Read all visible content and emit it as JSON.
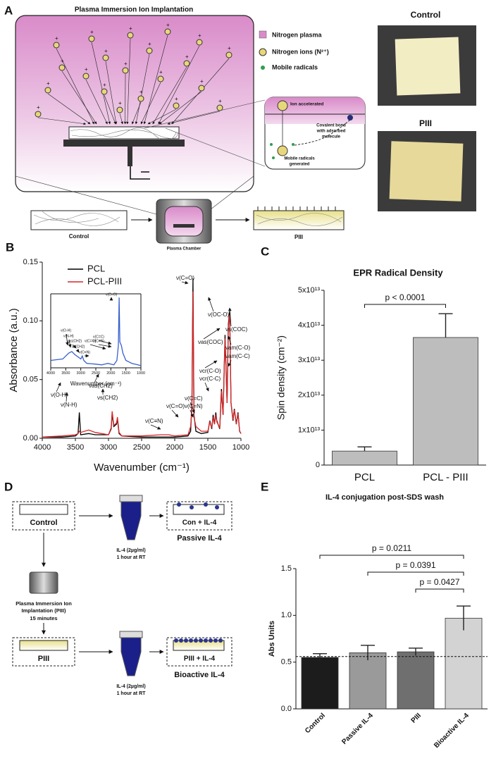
{
  "figure_a": {
    "label": "A",
    "title": "Plasma Immersion Ion Implantation",
    "legend": [
      "Nitrogen plasma",
      "Nitrogen ions (N²⁺)",
      "Mobile radicals"
    ],
    "zoom_ion": "Ion accelerated",
    "zoom_bond": [
      "Covalent bond",
      "with adsorbed",
      "molecule"
    ],
    "zoom_radicals": [
      "Mobile radicals",
      "generated"
    ],
    "flow": [
      "Control",
      "Plasma Chamber",
      "PIII"
    ],
    "photos": [
      "Control",
      "PIII"
    ]
  },
  "figure_d": {
    "label": "D",
    "control": "Control",
    "treatment_top": [
      "IL-4 (2µg/ml)",
      "1 hour at RT"
    ],
    "con_box": "Con + IL-4",
    "passive": "Passive IL-4",
    "piii_step": [
      "Plasma Immersion Ion",
      "Implantation (PIII)",
      "15 minutes"
    ],
    "piii": "PIII",
    "treatment_bottom": [
      "IL-4 (2µg/ml)",
      "1 hour at RT"
    ],
    "piii_box": "PIII + IL-4",
    "bioactive": "Bioactive IL-4"
  },
  "chart_data": [
    {
      "type": "line",
      "panel_label": "B",
      "xlabel": "Wavenumber (cm⁻¹)",
      "ylabel": "Absorbance (a.u.)",
      "xlim": [
        4000,
        1000
      ],
      "xticks": [
        4000,
        3500,
        3000,
        2500,
        2000,
        1500,
        1000
      ],
      "ylim": [
        0,
        0.15
      ],
      "yticks": [
        {
          "value": 0,
          "label": "0.00"
        },
        0.05,
        {
          "value": 0.1,
          "label": "0.10"
        },
        0.15
      ],
      "x": [
        4000,
        3700,
        3500,
        3460,
        3440,
        3420,
        3300,
        3200,
        3000,
        2960,
        2945,
        2920,
        2880,
        2865,
        2840,
        2800,
        2500,
        2210,
        2090,
        2000,
        1800,
        1760,
        1740,
        1725,
        1710,
        1680,
        1600,
        1500,
        1470,
        1440,
        1420,
        1400,
        1380,
        1365,
        1320,
        1295,
        1270,
        1240,
        1210,
        1190,
        1170,
        1150,
        1120,
        1100,
        1070,
        1045,
        1020,
        1000
      ],
      "series": [
        {
          "name": "PCL",
          "color": "#000000",
          "values": [
            0.001,
            0.001,
            0.002,
            0.004,
            0.022,
            0.003,
            0.004,
            0.003,
            0.003,
            0.008,
            0.021,
            0.01,
            0.012,
            0.016,
            0.004,
            0.002,
            0.001,
            0.001,
            0.001,
            0.001,
            0.002,
            0.006,
            0.03,
            0.136,
            0.02,
            0.006,
            0.004,
            0.005,
            0.015,
            0.008,
            0.02,
            0.012,
            0.022,
            0.015,
            0.008,
            0.042,
            0.02,
            0.088,
            0.03,
            0.097,
            0.108,
            0.03,
            0.015,
            0.025,
            0.012,
            0.022,
            0.006,
            0.004
          ]
        },
        {
          "name": "PCL-PIII",
          "color": "#d62728",
          "values": [
            0.001,
            0.002,
            0.003,
            0.004,
            0.006,
            0.005,
            0.007,
            0.005,
            0.003,
            0.009,
            0.023,
            0.011,
            0.013,
            0.018,
            0.005,
            0.002,
            0.002,
            0.003,
            0.003,
            0.002,
            0.003,
            0.01,
            0.025,
            0.125,
            0.018,
            0.01,
            0.006,
            0.006,
            0.014,
            0.009,
            0.018,
            0.012,
            0.02,
            0.014,
            0.009,
            0.04,
            0.02,
            0.085,
            0.03,
            0.095,
            0.105,
            0.03,
            0.016,
            0.024,
            0.012,
            0.021,
            0.006,
            0.004
          ]
        }
      ],
      "annotations": [
        "ν(O-H)",
        "ν(N-H)",
        "νas(CH2)",
        "νs(CH2)",
        "ν(C≡N)",
        "ν(C=O)",
        "ν(C=C)",
        "ν(C=N)",
        "ν(C=O)",
        "ν(OC-O)",
        "νs(COC)",
        "νas(COC)",
        "νcr(C-O)",
        "νcr(C-C)",
        "νam(C-O)",
        "νam(C-C)"
      ]
    },
    {
      "type": "line",
      "xlabel": "Wavenumber (cm⁻¹)",
      "xlim": [
        4000,
        1000
      ],
      "xticks": [
        4000,
        3500,
        3000,
        2500,
        2000,
        1500,
        1000
      ],
      "ylim": [
        0,
        1
      ],
      "x": [
        4000,
        3600,
        3400,
        3300,
        3200,
        3000,
        2950,
        2900,
        2800,
        2500,
        2300,
        2200,
        2100,
        2000,
        1900,
        1800,
        1750,
        1725,
        1700,
        1650,
        1600,
        1500,
        1400,
        1300,
        1200,
        1100,
        1000
      ],
      "series": [
        {
          "color": "#3a5fcd",
          "values": [
            0.1,
            0.12,
            0.2,
            0.22,
            0.18,
            0.12,
            0.16,
            0.1,
            0.06,
            0.05,
            0.04,
            0.05,
            0.06,
            0.05,
            0.04,
            0.1,
            0.3,
            0.95,
            0.35,
            0.3,
            0.2,
            0.1,
            0.08,
            0.06,
            0.05,
            0.04,
            0.03
          ]
        }
      ],
      "annotations": [
        "ν(O-H)",
        "ν(N-H)",
        "νas(CH2)",
        "νs(CH2)",
        "ν(C≡N)",
        "ν(C=O)",
        "ν(C=C)",
        "ν(C=N)",
        "ν(C=O)"
      ]
    },
    {
      "type": "bar",
      "panel_label": "C",
      "title": "EPR Radical Density",
      "ylabel": "Spin density (cm⁻²)",
      "categories": [
        "PCL",
        "PCL - PIII"
      ],
      "values": [
        4000000000000.0,
        36500000000000.0
      ],
      "errors": [
        1200000000000.0,
        6800000000000.0
      ],
      "colors": [
        "#bdbdbd",
        "#bdbdbd"
      ],
      "ylim": [
        0,
        50000000000000.0
      ],
      "yticks": [
        0,
        {
          "value": 10000000000000.0,
          "label": "1x10¹³"
        },
        {
          "value": 20000000000000.0,
          "label": "2x10¹³"
        },
        {
          "value": 30000000000000.0,
          "label": "3x10¹³"
        },
        {
          "value": 40000000000000.0,
          "label": "4x10¹³"
        },
        {
          "value": 50000000000000.0,
          "label": "5x10¹³"
        }
      ],
      "comparisons": [
        "p < 0.0001"
      ]
    },
    {
      "type": "bar",
      "panel_label": "E",
      "title": "IL-4 conjugation post-SDS wash",
      "ylabel": "Abs Units",
      "categories": [
        "Control",
        "Passive IL-4",
        "PIII",
        "Bioactive IL-4"
      ],
      "values": [
        0.55,
        0.6,
        0.61,
        0.97
      ],
      "errors": [
        0.04,
        0.08,
        0.04,
        0.13
      ],
      "colors": [
        "#1c1c1c",
        "#9a9a9a",
        "#6f6f6f",
        "#d3d3d3"
      ],
      "ylim": [
        0,
        1.5
      ],
      "yticks": [
        {
          "value": 0,
          "label": "0.0"
        },
        0.5,
        {
          "value": 1,
          "label": "1.0"
        },
        1.5
      ],
      "reference_line": 0.56,
      "comparisons": [
        "p = 0.0211",
        "p = 0.0391",
        "p = 0.0427"
      ]
    }
  ]
}
